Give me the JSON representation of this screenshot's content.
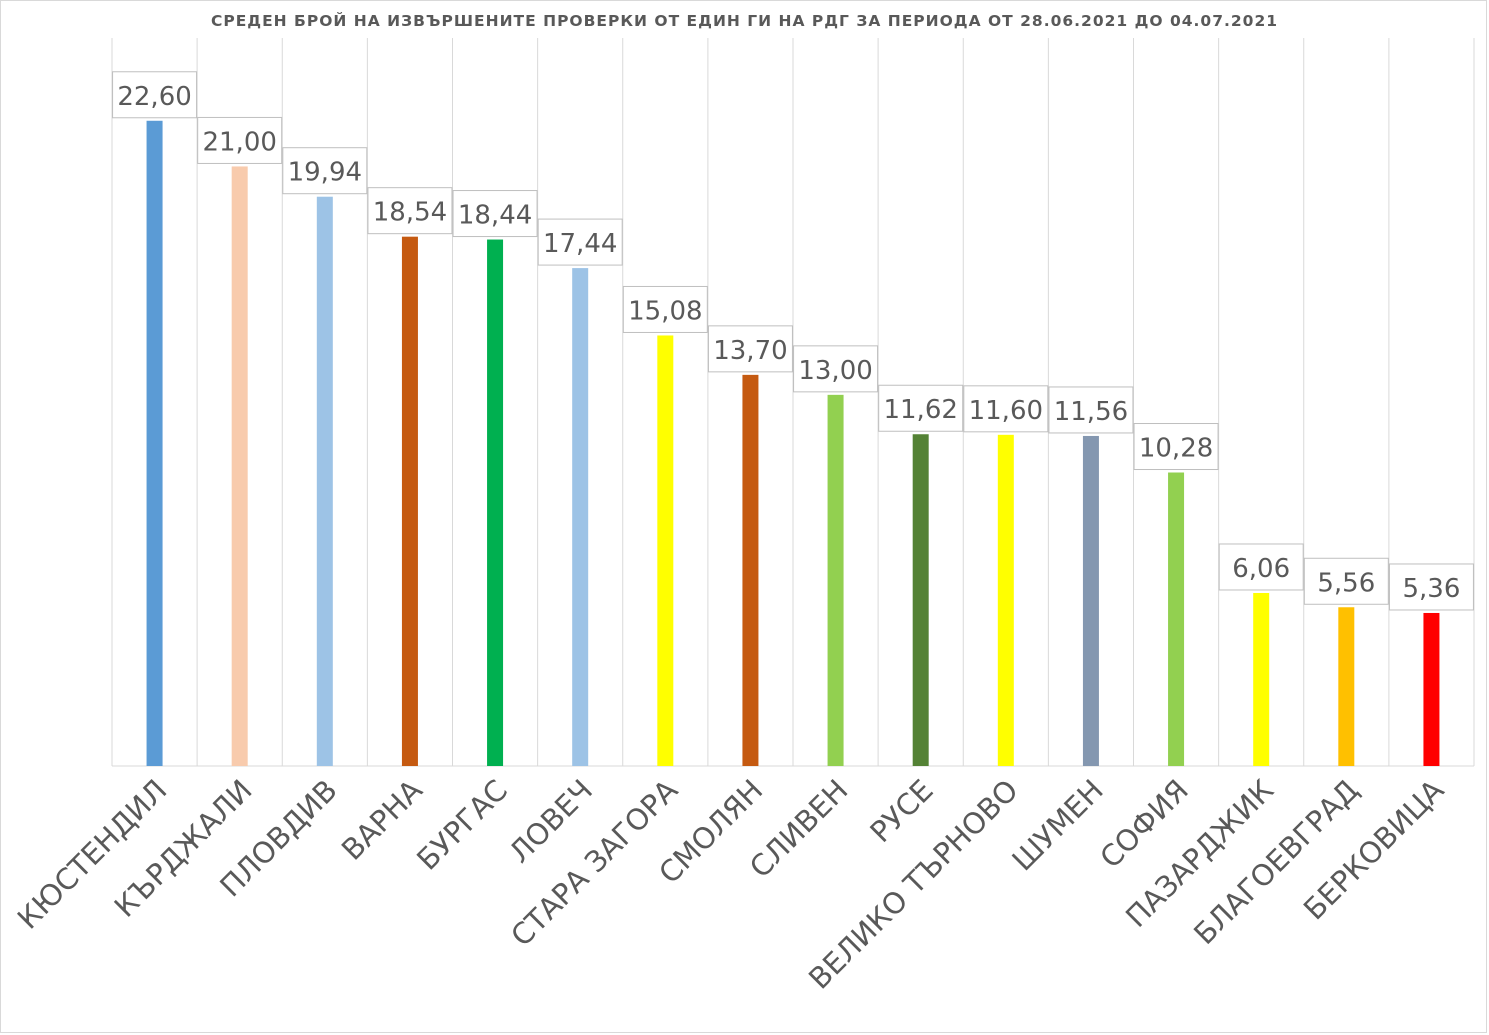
{
  "chart_data": {
    "type": "bar",
    "title": "СРЕДЕН БРОЙ НА ИЗВЪРШЕНИТЕ ПРОВЕРКИ ОТ ЕДИН ГИ НА РДГ ЗА ПЕРИОДА ОТ 28.06.2021 ДО 04.07.2021",
    "xlabel": "",
    "ylabel": "",
    "ylim": [
      0,
      25
    ],
    "grid": "vertical",
    "legend": "none",
    "categories": [
      "КЮСТЕНДИЛ",
      "КЪРДЖАЛИ",
      "ПЛОВДИВ",
      "ВАРНА",
      "БУРГАС",
      "ЛОВЕЧ",
      "СТАРА ЗАГОРА",
      "СМОЛЯН",
      "СЛИВЕН",
      "РУСЕ",
      "ВЕЛИКО ТЪРНОВО",
      "ШУМЕН",
      "СОФИЯ",
      "ПАЗАРДЖИК",
      "БЛАГОЕВГРАД",
      "БЕРКОВИЦА"
    ],
    "values": [
      22.6,
      21.0,
      19.94,
      18.54,
      18.44,
      17.44,
      15.08,
      13.7,
      13.0,
      11.62,
      11.6,
      11.56,
      10.28,
      6.06,
      5.56,
      5.36
    ],
    "data_labels": [
      "22,60",
      "21,00",
      "19,94",
      "18,54",
      "18,44",
      "17,44",
      "15,08",
      "13,70",
      "13,00",
      "11,62",
      "11,60",
      "11,56",
      "10,28",
      "6,06",
      "5,56",
      "5,36"
    ],
    "colors": [
      "#5b9bd5",
      "#f8cbad",
      "#9dc3e6",
      "#c55a11",
      "#00b050",
      "#9dc3e6",
      "#ffff00",
      "#c55a11",
      "#92d050",
      "#548235",
      "#ffff00",
      "#8497b0",
      "#92d050",
      "#ffff00",
      "#ffc000",
      "#ff0000"
    ]
  }
}
